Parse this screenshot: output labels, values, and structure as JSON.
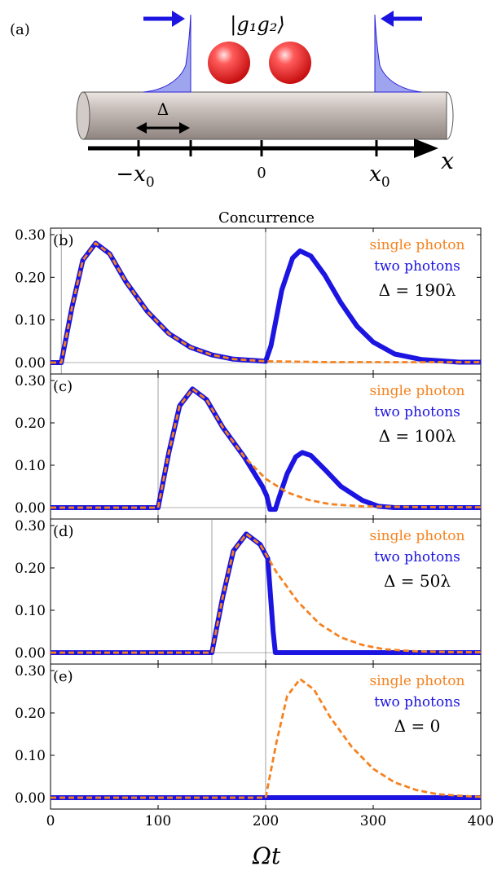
{
  "schematic": {
    "panel_label": "(a)",
    "state_label": "|g₁g₂⟩",
    "delta_label": "Δ",
    "axis_label": "x",
    "ticks": [
      {
        "key": "neg_x0",
        "main": "−x",
        "sub": "0"
      },
      {
        "key": "zero",
        "main": "0",
        "sub": ""
      },
      {
        "key": "pos_x0",
        "main": "x",
        "sub": "0"
      }
    ]
  },
  "figure": {
    "title": "Concurrence",
    "xlabel": "Ωt"
  },
  "chart_data": {
    "type": "line",
    "x_range": [
      0,
      400
    ],
    "x_ticks": [
      "0",
      "100",
      "200",
      "300",
      "400"
    ],
    "y_range": [
      0,
      0.3
    ],
    "y_ticks": [
      "0.00",
      "0.10",
      "0.20",
      "0.30"
    ],
    "colors": {
      "single_photon": "#f5821f",
      "two_photons": "#1c14e0"
    },
    "panels": [
      {
        "label": "(b)",
        "legend": {
          "single": "single photon",
          "two": "two photons",
          "delta": "Δ = 190λ"
        },
        "vlines": [
          10,
          200
        ],
        "series": [
          {
            "name": "single photon",
            "style": "dashed",
            "points": [
              [
                0,
                0
              ],
              [
                10,
                0
              ],
              [
                20,
                0.13
              ],
              [
                30,
                0.24
              ],
              [
                42,
                0.28
              ],
              [
                55,
                0.255
              ],
              [
                70,
                0.19
              ],
              [
                90,
                0.12
              ],
              [
                110,
                0.068
              ],
              [
                130,
                0.036
              ],
              [
                150,
                0.018
              ],
              [
                170,
                0.008
              ],
              [
                200,
                0.003
              ],
              [
                260,
                0.001
              ],
              [
                400,
                0.001
              ]
            ]
          },
          {
            "name": "two photons",
            "style": "solid",
            "points": [
              [
                0,
                0
              ],
              [
                10,
                0
              ],
              [
                20,
                0.13
              ],
              [
                30,
                0.24
              ],
              [
                42,
                0.28
              ],
              [
                55,
                0.255
              ],
              [
                70,
                0.19
              ],
              [
                90,
                0.12
              ],
              [
                110,
                0.068
              ],
              [
                130,
                0.036
              ],
              [
                150,
                0.018
              ],
              [
                170,
                0.008
              ],
              [
                200,
                0.003
              ],
              [
                205,
                0.04
              ],
              [
                215,
                0.17
              ],
              [
                225,
                0.245
              ],
              [
                232,
                0.262
              ],
              [
                242,
                0.25
              ],
              [
                255,
                0.205
              ],
              [
                270,
                0.14
              ],
              [
                285,
                0.085
              ],
              [
                300,
                0.048
              ],
              [
                320,
                0.02
              ],
              [
                345,
                0.007
              ],
              [
                380,
                0.001
              ],
              [
                400,
                0.001
              ]
            ]
          }
        ]
      },
      {
        "label": "(c)",
        "legend": {
          "single": "single photon",
          "two": "two photons",
          "delta": "Δ = 100λ"
        },
        "vlines": [
          100,
          200
        ],
        "series": [
          {
            "name": "single photon",
            "style": "dashed",
            "points": [
              [
                0,
                0
              ],
              [
                100,
                0
              ],
              [
                110,
                0.13
              ],
              [
                120,
                0.24
              ],
              [
                132,
                0.28
              ],
              [
                145,
                0.255
              ],
              [
                160,
                0.19
              ],
              [
                180,
                0.12
              ],
              [
                200,
                0.068
              ],
              [
                220,
                0.036
              ],
              [
                240,
                0.018
              ],
              [
                260,
                0.008
              ],
              [
                290,
                0.003
              ],
              [
                350,
                0.001
              ],
              [
                400,
                0.001
              ]
            ]
          },
          {
            "name": "two photons",
            "style": "solid",
            "points": [
              [
                0,
                0
              ],
              [
                100,
                0
              ],
              [
                110,
                0.13
              ],
              [
                120,
                0.24
              ],
              [
                132,
                0.28
              ],
              [
                145,
                0.255
              ],
              [
                160,
                0.19
              ],
              [
                180,
                0.12
              ],
              [
                197,
                0.05
              ],
              [
                201,
                0.028
              ],
              [
                204,
                -0.004
              ],
              [
                209,
                -0.004
              ],
              [
                212,
                0.02
              ],
              [
                220,
                0.08
              ],
              [
                228,
                0.12
              ],
              [
                234,
                0.13
              ],
              [
                242,
                0.123
              ],
              [
                255,
                0.09
              ],
              [
                270,
                0.05
              ],
              [
                290,
                0.017
              ],
              [
                305,
                0.003
              ],
              [
                320,
                0
              ],
              [
                400,
                0
              ]
            ]
          }
        ]
      },
      {
        "label": "(d)",
        "legend": {
          "single": "single photon",
          "two": "two photons",
          "delta": "Δ = 50λ"
        },
        "vlines": [
          150,
          200
        ],
        "series": [
          {
            "name": "single photon",
            "style": "dashed",
            "points": [
              [
                0,
                0
              ],
              [
                150,
                0
              ],
              [
                160,
                0.13
              ],
              [
                170,
                0.24
              ],
              [
                182,
                0.28
              ],
              [
                195,
                0.255
              ],
              [
                210,
                0.19
              ],
              [
                230,
                0.12
              ],
              [
                250,
                0.068
              ],
              [
                270,
                0.036
              ],
              [
                290,
                0.018
              ],
              [
                310,
                0.008
              ],
              [
                340,
                0.003
              ],
              [
                380,
                0.001
              ],
              [
                400,
                0.001
              ]
            ]
          },
          {
            "name": "two photons",
            "style": "solid",
            "points": [
              [
                0,
                0
              ],
              [
                150,
                0
              ],
              [
                160,
                0.13
              ],
              [
                170,
                0.24
              ],
              [
                182,
                0.28
              ],
              [
                195,
                0.255
              ],
              [
                202,
                0.222
              ],
              [
                207,
                0.05
              ],
              [
                209,
                0
              ],
              [
                400,
                0
              ]
            ]
          }
        ]
      },
      {
        "label": "(e)",
        "legend": {
          "single": "single photon",
          "two": "two photons",
          "delta": "Δ = 0"
        },
        "vlines": [
          200
        ],
        "series": [
          {
            "name": "single photon",
            "style": "dashed",
            "points": [
              [
                0,
                0
              ],
              [
                200,
                0
              ],
              [
                210,
                0.13
              ],
              [
                220,
                0.24
              ],
              [
                232,
                0.28
              ],
              [
                245,
                0.255
              ],
              [
                260,
                0.19
              ],
              [
                280,
                0.12
              ],
              [
                300,
                0.068
              ],
              [
                320,
                0.036
              ],
              [
                340,
                0.018
              ],
              [
                360,
                0.008
              ],
              [
                390,
                0.003
              ],
              [
                400,
                0.002
              ]
            ]
          },
          {
            "name": "two photons",
            "style": "solid",
            "points": [
              [
                0,
                0
              ],
              [
                400,
                0
              ]
            ]
          }
        ]
      }
    ]
  }
}
